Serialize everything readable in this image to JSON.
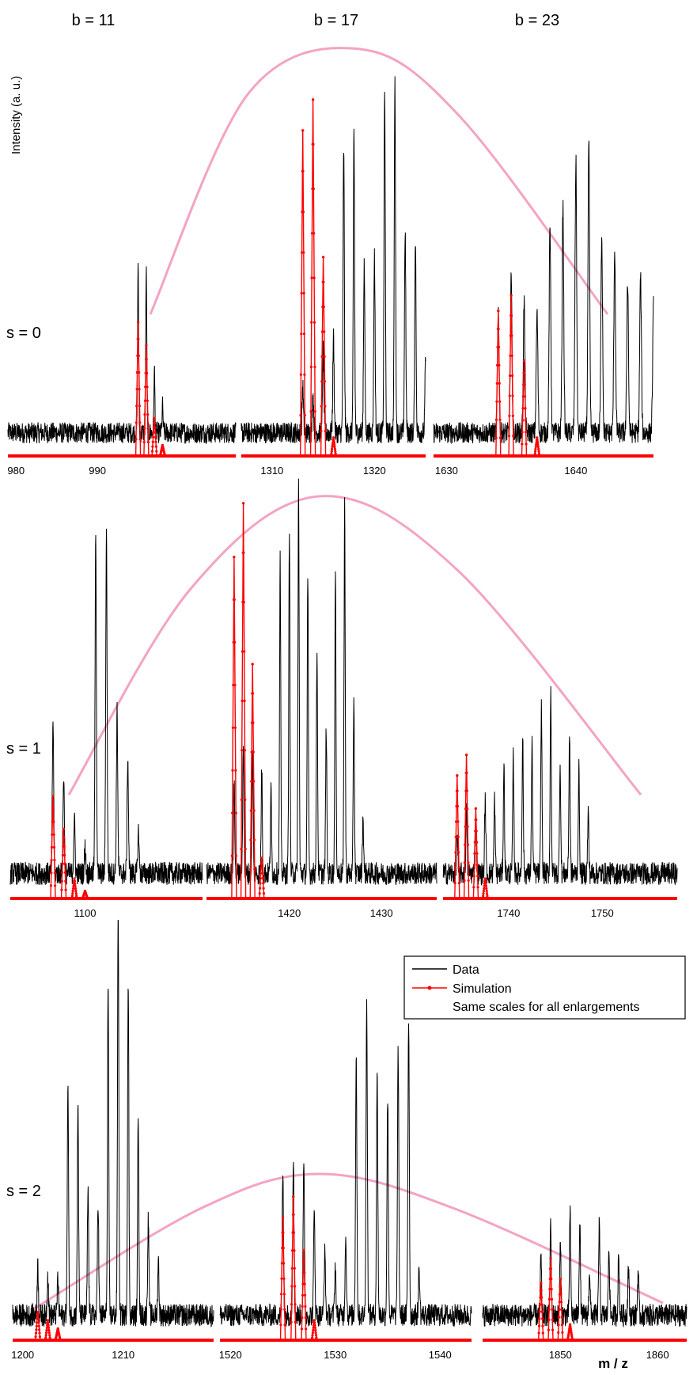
{
  "header": {
    "columns": [
      "b = 11",
      "b = 17",
      "b = 23"
    ],
    "ylabel": "Intensity (a. u.)",
    "xlabel": "m / z"
  },
  "legend": {
    "data": "Data",
    "simulation": "Simulation",
    "note": "Same scales for all enlargements"
  },
  "colors": {
    "data": "#000000",
    "simulation": "#ff0000",
    "envelope": "#f4a3c4"
  },
  "chart_data": {
    "type": "line",
    "rows": [
      {
        "label": "s = 0",
        "panels": [
          {
            "xlim": [
              979,
              1007
            ],
            "ticks": [
              980,
              990
            ],
            "peak_start": 995.0,
            "data_heights": [
              0.45,
              0.43,
              0.16,
              0.07
            ],
            "sim_heights": [
              0.35,
              0.29,
              0.1,
              0.03
            ]
          },
          {
            "xlim": [
              1307,
              1325
            ],
            "ticks": [
              1310,
              1320
            ],
            "peak_start": 1313.0,
            "data_heights": [
              0.12,
              0.1,
              0.22,
              0.25,
              0.74,
              0.78,
              0.44,
              0.46,
              0.89,
              0.91,
              0.53,
              0.51,
              0.2,
              0.13
            ],
            "sim_heights": [
              0.85,
              0.93,
              0.52,
              0.05
            ]
          },
          {
            "xlim": [
              1629,
              1646
            ],
            "ticks": [
              1630,
              1640
            ],
            "peak_start": 1634.0,
            "data_heights": [
              0.32,
              0.4,
              0.34,
              0.31,
              0.53,
              0.59,
              0.71,
              0.75,
              0.52,
              0.48,
              0.4,
              0.41,
              0.33,
              0.2
            ],
            "sim_heights": [
              0.38,
              0.42,
              0.25,
              0.05
            ]
          }
        ]
      },
      {
        "label": "s = 1",
        "panels": [
          {
            "xlim": [
              1093,
              1111
            ],
            "ticks": [
              1100
            ],
            "peak_start": 1097.0,
            "data_heights": [
              0.37,
              0.24,
              0.13,
              0.06,
              0.82,
              0.83,
              0.39,
              0.28,
              0.1
            ],
            "sim_heights": [
              0.25,
              0.17,
              0.05,
              0.02
            ]
          },
          {
            "xlim": [
              1411,
              1436
            ],
            "ticks": [
              1420,
              1430
            ],
            "peak_start": 1414.0,
            "data_heights": [
              0.22,
              0.33,
              0.29,
              0.25,
              0.2,
              0.76,
              0.85,
              0.96,
              0.71,
              0.55,
              0.36,
              0.72,
              0.91,
              0.42,
              0.14
            ],
            "sim_heights": [
              0.83,
              0.96,
              0.57,
              0.1
            ]
          },
          {
            "xlim": [
              1733,
              1758
            ],
            "ticks": [
              1740,
              1750
            ],
            "peak_start": 1734.5,
            "data_heights": [
              0.1,
              0.16,
              0.13,
              0.18,
              0.18,
              0.26,
              0.28,
              0.33,
              0.31,
              0.41,
              0.44,
              0.27,
              0.34,
              0.25,
              0.15
            ],
            "sim_heights": [
              0.3,
              0.35,
              0.22,
              0.05
            ]
          }
        ]
      },
      {
        "label": "s = 2",
        "panels": [
          {
            "xlim": [
              1199,
              1219
            ],
            "ticks": [
              1200,
              1210
            ],
            "peak_start": 1201.5,
            "data_heights": [
              0.12,
              0.1,
              0.09,
              0.55,
              0.51,
              0.3,
              0.28,
              0.8,
              0.99,
              0.8,
              0.48,
              0.23,
              0.13
            ],
            "sim_heights": [
              0.07,
              0.05,
              0.03
            ]
          },
          {
            "xlim": [
              1519,
              1543
            ],
            "ticks": [
              1520,
              1530,
              1540
            ],
            "peak_start": 1525.0,
            "data_heights": [
              0.34,
              0.38,
              0.35,
              0.25,
              0.15,
              0.12,
              0.19,
              0.63,
              0.75,
              0.58,
              0.52,
              0.64,
              0.72,
              0.11
            ],
            "sim_heights": [
              0.3,
              0.35,
              0.22,
              0.05
            ]
          },
          {
            "xlim": [
              1842,
              1863
            ],
            "ticks": [
              1850,
              1860
            ],
            "peak_start": 1848.0,
            "data_heights": [
              0.14,
              0.21,
              0.17,
              0.25,
              0.22,
              0.11,
              0.22,
              0.17,
              0.14,
              0.12,
              0.11
            ],
            "sim_heights": [
              0.14,
              0.2,
              0.15,
              0.04
            ]
          }
        ]
      }
    ]
  }
}
